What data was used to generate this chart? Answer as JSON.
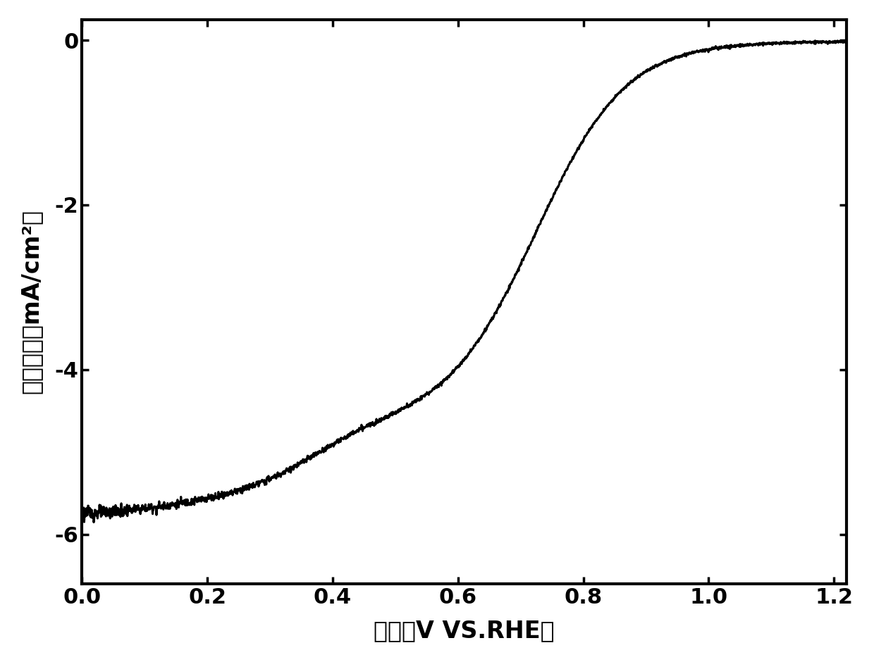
{
  "title": "",
  "xlabel": "电势（V VS.RHE）",
  "ylabel": "电流密度（mA/cm²）",
  "xlim": [
    0.0,
    1.22
  ],
  "ylim": [
    -6.6,
    0.25
  ],
  "xticks": [
    0.0,
    0.2,
    0.4,
    0.6,
    0.8,
    1.0,
    1.2
  ],
  "yticks": [
    0,
    -2,
    -4,
    -6
  ],
  "line_color": "#000000",
  "line_width": 2.2,
  "background_color": "#ffffff",
  "xlabel_fontsize": 24,
  "ylabel_fontsize": 24,
  "tick_fontsize": 22
}
